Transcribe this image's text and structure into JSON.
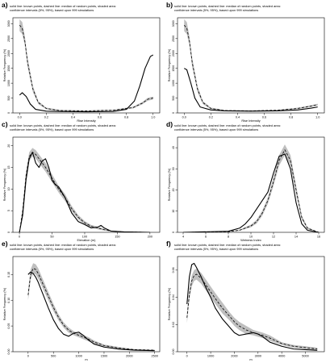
{
  "figure": {
    "caption_line1": "solid line: known points, dashed line: median of random points, shaded area:",
    "caption_line2": "confidence intervals (5%, 95%), based upon 999 simulations"
  },
  "colors": {
    "background": "#ffffff",
    "line": "#000000",
    "band": "#aaaaaa"
  },
  "chart_data": [
    {
      "type": "line",
      "label": "a)",
      "xlabel": "Rise Intensity",
      "ylabel": "Relative Frequency (%)",
      "xlim": [
        -0.05,
        1.05
      ],
      "ylim": [
        0,
        3200
      ],
      "xticks": [
        "0.0",
        "0.2",
        "0.4",
        "0.6",
        "0.8",
        "1.0"
      ],
      "xtick_values": [
        0,
        0.2,
        0.4,
        0.6,
        0.8,
        1.0
      ],
      "yticks": [
        "0",
        "500",
        "1000",
        "1500",
        "2000",
        "2500",
        "3000"
      ],
      "ytick_values": [
        0,
        500,
        1000,
        1500,
        2000,
        2500,
        3000
      ],
      "series": [
        {
          "style": "solid",
          "x": [
            0.0,
            0.02,
            0.05,
            0.08,
            0.12,
            0.2,
            0.3,
            0.5,
            0.7,
            0.8,
            0.86,
            0.9,
            0.94,
            0.98,
            1.0
          ],
          "y": [
            600,
            680,
            550,
            300,
            120,
            60,
            50,
            40,
            50,
            120,
            400,
            900,
            1500,
            1900,
            1950
          ]
        },
        {
          "style": "dashed",
          "x": [
            0.0,
            0.02,
            0.04,
            0.06,
            0.1,
            0.14,
            0.2,
            0.3,
            0.5,
            0.7,
            0.85,
            0.92,
            0.96,
            1.0
          ],
          "y": [
            2950,
            2850,
            2400,
            1700,
            800,
            350,
            150,
            80,
            70,
            90,
            180,
            330,
            460,
            500
          ],
          "lower": [
            2750,
            2650,
            2250,
            1550,
            700,
            300,
            120,
            60,
            55,
            70,
            150,
            290,
            410,
            450
          ],
          "upper": [
            3150,
            3050,
            2550,
            1850,
            900,
            400,
            180,
            100,
            85,
            110,
            210,
            370,
            510,
            550
          ]
        }
      ]
    },
    {
      "type": "line",
      "label": "b)",
      "xlabel": "Rise Intensity",
      "ylabel": "Relative Frequency (%)",
      "xlim": [
        -0.05,
        1.05
      ],
      "ylim": [
        0,
        3200
      ],
      "xticks": [
        "0.0",
        "0.2",
        "0.4",
        "0.6",
        "0.8",
        "1.0"
      ],
      "xtick_values": [
        0,
        0.2,
        0.4,
        0.6,
        0.8,
        1.0
      ],
      "yticks": [
        "0",
        "500",
        "1000",
        "1500",
        "2000",
        "2500",
        "3000"
      ],
      "ytick_values": [
        0,
        500,
        1000,
        1500,
        2000,
        2500,
        3000
      ],
      "series": [
        {
          "style": "solid",
          "x": [
            0.0,
            0.02,
            0.05,
            0.08,
            0.12,
            0.2,
            0.3,
            0.5,
            0.7,
            0.85,
            0.95,
            1.0
          ],
          "y": [
            1500,
            1450,
            1000,
            500,
            200,
            100,
            70,
            60,
            70,
            100,
            160,
            200
          ]
        },
        {
          "style": "dashed",
          "x": [
            0.0,
            0.02,
            0.04,
            0.06,
            0.1,
            0.14,
            0.2,
            0.3,
            0.5,
            0.7,
            0.85,
            0.95,
            1.0
          ],
          "y": [
            2950,
            2850,
            2400,
            1700,
            800,
            350,
            150,
            80,
            70,
            90,
            150,
            230,
            280
          ],
          "lower": [
            2750,
            2650,
            2250,
            1550,
            700,
            300,
            120,
            60,
            55,
            70,
            125,
            200,
            250
          ],
          "upper": [
            3150,
            3050,
            2550,
            1850,
            900,
            400,
            180,
            100,
            85,
            110,
            175,
            260,
            310
          ]
        }
      ]
    },
    {
      "type": "line",
      "label": "c)",
      "xlabel": "Elevation (m)",
      "ylabel": "Relative Frequency (%)",
      "xlim": [
        -10,
        215
      ],
      "ylim": [
        0,
        22
      ],
      "xticks": [
        "0",
        "50",
        "100",
        "150",
        "200"
      ],
      "xtick_values": [
        0,
        50,
        100,
        150,
        200
      ],
      "yticks": [
        "0",
        "5",
        "10",
        "15",
        "20"
      ],
      "ytick_values": [
        0,
        5,
        10,
        15,
        20
      ],
      "series": [
        {
          "style": "solid",
          "x": [
            0,
            5,
            10,
            15,
            20,
            25,
            30,
            35,
            40,
            45,
            50,
            55,
            60,
            70,
            80,
            90,
            100,
            110,
            120,
            125,
            130,
            140,
            160,
            200
          ],
          "y": [
            0,
            4,
            12,
            17,
            18.5,
            16,
            15,
            16.5,
            17,
            15,
            12,
            11,
            10.5,
            8,
            4.5,
            2.5,
            1.8,
            1,
            1.2,
            1.6,
            1,
            0.3,
            0.1,
            0
          ]
        },
        {
          "style": "dashed",
          "x": [
            0,
            5,
            10,
            15,
            20,
            25,
            30,
            40,
            50,
            60,
            70,
            80,
            90,
            100,
            110,
            120,
            130,
            140,
            160,
            200
          ],
          "y": [
            0,
            5,
            13,
            17.5,
            18.5,
            18,
            17,
            15,
            12.5,
            10,
            8,
            5.5,
            3.5,
            2.2,
            1.4,
            1,
            0.6,
            0.3,
            0.1,
            0
          ],
          "lower": [
            0,
            4.2,
            12,
            16.5,
            17.5,
            17,
            16,
            14,
            11.6,
            9.2,
            7.2,
            4.9,
            3,
            1.8,
            1.1,
            0.7,
            0.4,
            0.2,
            0.05,
            0
          ],
          "upper": [
            0,
            5.8,
            14,
            18.5,
            19.5,
            19,
            18,
            16,
            13.4,
            10.8,
            8.8,
            6.1,
            4,
            2.6,
            1.7,
            1.3,
            0.8,
            0.4,
            0.15,
            0
          ]
        }
      ]
    },
    {
      "type": "line",
      "label": "d)",
      "xlabel": "Wetness Index",
      "ylabel": "Relative Frequency (%)",
      "xlim": [
        3.5,
        16.5
      ],
      "ylim": [
        0,
        45
      ],
      "xticks": [
        "4",
        "6",
        "8",
        "10",
        "12",
        "14",
        "16"
      ],
      "xtick_values": [
        4,
        6,
        8,
        10,
        12,
        14,
        16
      ],
      "yticks": [
        "0",
        "10",
        "20",
        "30",
        "40"
      ],
      "ytick_values": [
        0,
        10,
        20,
        30,
        40
      ],
      "series": [
        {
          "style": "solid",
          "x": [
            4,
            8,
            9,
            9.5,
            10,
            10.5,
            11,
            11.5,
            12,
            12.5,
            13,
            13.5,
            14,
            14.5,
            15,
            16
          ],
          "y": [
            0,
            0.5,
            2,
            4,
            7,
            11,
            15,
            19,
            28,
            36,
            37,
            30,
            14,
            4,
            1,
            0
          ]
        },
        {
          "style": "dashed",
          "x": [
            4,
            8,
            9,
            10,
            10.5,
            11,
            11.5,
            12,
            12.5,
            13,
            13.5,
            14,
            14.5,
            15,
            16
          ],
          "y": [
            0,
            0.3,
            1,
            3,
            5,
            9,
            15,
            24,
            34,
            39,
            34,
            20,
            7,
            2,
            0
          ],
          "lower": [
            0,
            0.2,
            0.7,
            2.4,
            4.1,
            7.8,
            13.5,
            22,
            31.5,
            36.5,
            31.5,
            18,
            6,
            1.5,
            0
          ],
          "upper": [
            0,
            0.4,
            1.3,
            3.6,
            5.9,
            10.2,
            16.5,
            26,
            36.5,
            41.5,
            36.5,
            22,
            8,
            2.5,
            0
          ]
        }
      ]
    },
    {
      "type": "line",
      "label": "e)",
      "xlabel": "m",
      "ylabel": "Relative Frequency (%)",
      "xlim": [
        -300,
        2600
      ],
      "ylim": [
        0,
        0.185
      ],
      "xticks": [
        "0",
        "500",
        "1000",
        "1500",
        "2000",
        "2500"
      ],
      "xtick_values": [
        0,
        500,
        1000,
        1500,
        2000,
        2500
      ],
      "yticks": [
        "0.00",
        "0.05",
        "0.10",
        "0.15"
      ],
      "ytick_values": [
        0,
        0.05,
        0.1,
        0.15
      ],
      "series": [
        {
          "style": "solid",
          "x": [
            0,
            50,
            100,
            150,
            200,
            300,
            400,
            500,
            600,
            700,
            800,
            900,
            1000,
            1100,
            1200,
            1300,
            1500,
            1800,
            2100,
            2500
          ],
          "y": [
            0.15,
            0.155,
            0.152,
            0.145,
            0.135,
            0.11,
            0.085,
            0.062,
            0.045,
            0.034,
            0.03,
            0.036,
            0.038,
            0.031,
            0.022,
            0.015,
            0.009,
            0.005,
            0.003,
            0.002
          ]
        },
        {
          "style": "dashed",
          "x": [
            0,
            50,
            100,
            150,
            200,
            300,
            400,
            500,
            600,
            700,
            800,
            900,
            1000,
            1100,
            1200,
            1300,
            1500,
            1800,
            2100,
            2500
          ],
          "y": [
            0.11,
            0.15,
            0.162,
            0.16,
            0.152,
            0.13,
            0.108,
            0.086,
            0.067,
            0.052,
            0.042,
            0.036,
            0.032,
            0.028,
            0.024,
            0.019,
            0.012,
            0.007,
            0.004,
            0.003
          ],
          "lower": [
            0.1,
            0.14,
            0.152,
            0.15,
            0.142,
            0.121,
            0.1,
            0.079,
            0.061,
            0.047,
            0.037,
            0.032,
            0.028,
            0.024,
            0.02,
            0.016,
            0.01,
            0.005,
            0.003,
            0.002
          ],
          "upper": [
            0.12,
            0.16,
            0.172,
            0.17,
            0.162,
            0.139,
            0.116,
            0.093,
            0.073,
            0.057,
            0.047,
            0.04,
            0.036,
            0.032,
            0.028,
            0.022,
            0.014,
            0.009,
            0.005,
            0.004
          ]
        }
      ]
    },
    {
      "type": "line",
      "label": "f)",
      "xlabel": "m",
      "ylabel": "Relative Frequency (%)",
      "xlim": [
        -400,
        5800
      ],
      "ylim": [
        0,
        0.07
      ],
      "xticks": [
        "0",
        "1000",
        "2000",
        "3000",
        "4000",
        "5000"
      ],
      "xtick_values": [
        0,
        1000,
        2000,
        3000,
        4000,
        5000
      ],
      "yticks": [
        "0.00",
        "0.02",
        "0.04",
        "0.06"
      ],
      "ytick_values": [
        0,
        0.02,
        0.04,
        0.06
      ],
      "series": [
        {
          "style": "solid",
          "x": [
            0,
            100,
            200,
            300,
            400,
            600,
            800,
            1000,
            1200,
            1500,
            1800,
            2000,
            2200,
            2500,
            2800,
            3000,
            3200,
            3500,
            4000,
            4500,
            5500
          ],
          "y": [
            0.035,
            0.055,
            0.064,
            0.065,
            0.062,
            0.055,
            0.047,
            0.04,
            0.032,
            0.024,
            0.018,
            0.014,
            0.012,
            0.013,
            0.014,
            0.013,
            0.011,
            0.007,
            0.004,
            0.002,
            0.001
          ]
        },
        {
          "style": "dashed",
          "x": [
            0,
            100,
            200,
            300,
            400,
            600,
            800,
            1000,
            1200,
            1500,
            1800,
            2000,
            2200,
            2500,
            2800,
            3000,
            3200,
            3500,
            4000,
            4500,
            5500
          ],
          "y": [
            0.025,
            0.042,
            0.052,
            0.056,
            0.057,
            0.054,
            0.049,
            0.044,
            0.039,
            0.032,
            0.026,
            0.022,
            0.019,
            0.016,
            0.014,
            0.013,
            0.012,
            0.01,
            0.006,
            0.004,
            0.002
          ],
          "lower": [
            0.021,
            0.038,
            0.048,
            0.052,
            0.053,
            0.05,
            0.045,
            0.04,
            0.035,
            0.028,
            0.023,
            0.019,
            0.016,
            0.013,
            0.012,
            0.011,
            0.01,
            0.008,
            0.005,
            0.003,
            0.001
          ],
          "upper": [
            0.029,
            0.046,
            0.056,
            0.06,
            0.061,
            0.058,
            0.053,
            0.048,
            0.043,
            0.036,
            0.029,
            0.025,
            0.022,
            0.019,
            0.016,
            0.015,
            0.014,
            0.012,
            0.007,
            0.005,
            0.003
          ]
        }
      ]
    }
  ]
}
